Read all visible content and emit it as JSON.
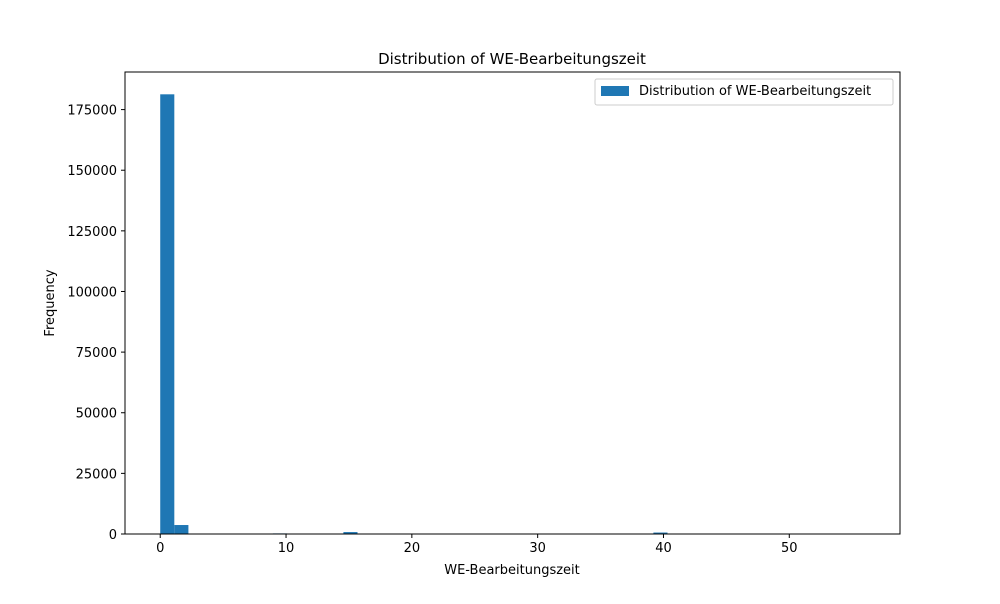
{
  "chart_data": {
    "type": "bar",
    "title": "Distribution of WE-Bearbeitungszeit",
    "xlabel": "WE-Bearbeitungszeit",
    "ylabel": "Frequency",
    "xlim": [
      -2.8,
      58.8
    ],
    "ylim": [
      0,
      190500
    ],
    "xticks": [
      0,
      10,
      20,
      30,
      40,
      50
    ],
    "yticks": [
      0,
      25000,
      50000,
      75000,
      100000,
      125000,
      150000,
      175000
    ],
    "grid": false,
    "legend": {
      "placement": "top-right",
      "entries": [
        "Distribution of WE-Bearbeitungszeit"
      ]
    },
    "color": "#1f77b4",
    "bin_width": 1.12,
    "series": [
      {
        "name": "Distribution of WE-Bearbeitungszeit",
        "bins": [
          {
            "x": 0.0,
            "value": 181300
          },
          {
            "x": 1.12,
            "value": 3700
          },
          {
            "x": 8.96,
            "value": 250
          },
          {
            "x": 14.56,
            "value": 800
          },
          {
            "x": 39.2,
            "value": 600
          }
        ]
      }
    ]
  }
}
